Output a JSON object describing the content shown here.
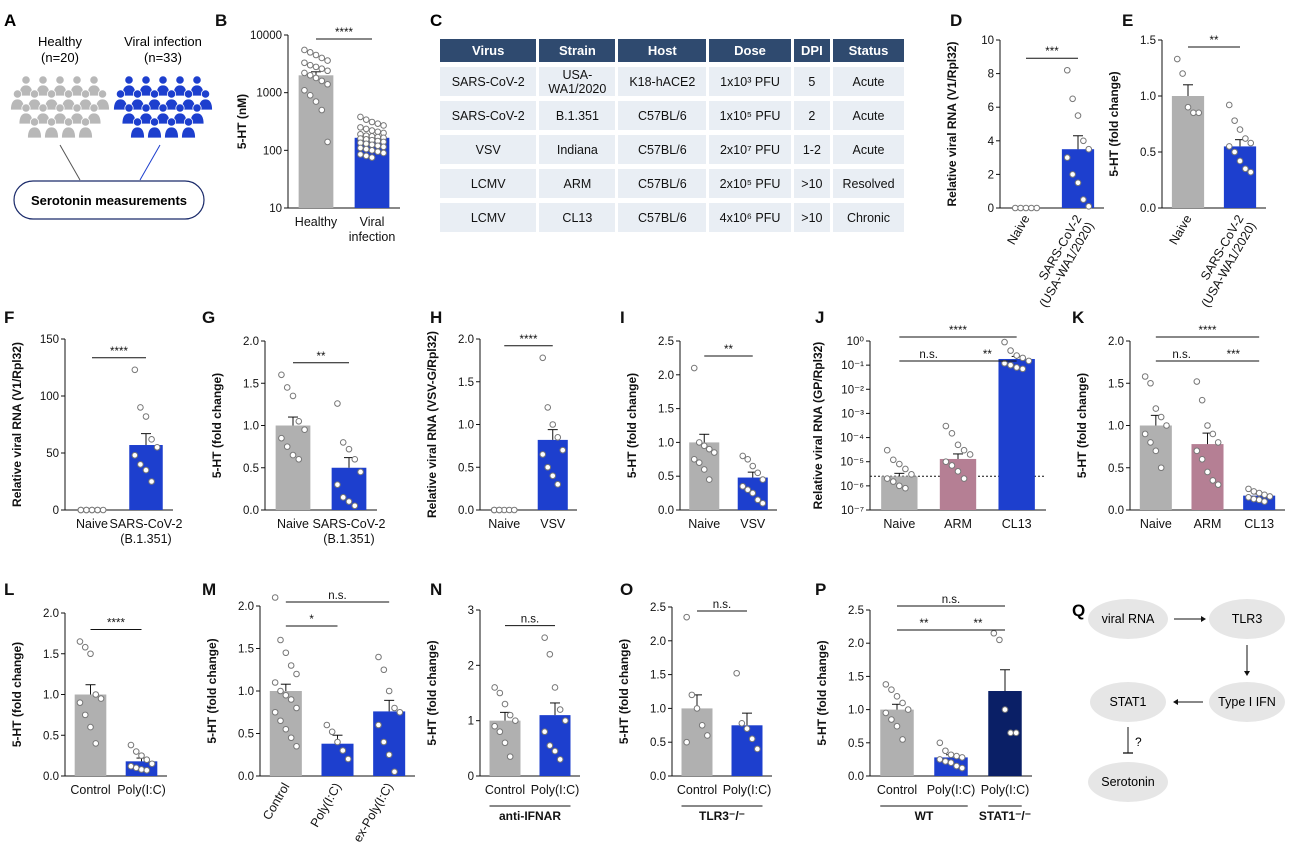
{
  "panels": {
    "A": {
      "letter": "A",
      "healthy_label": "Healthy",
      "healthy_n": "(n=20)",
      "viral_label": "Viral infection",
      "viral_n": "(n=33)",
      "box_label": "Serotonin measurements",
      "healthy_color": "#b8b8b8",
      "viral_color": "#1d3fce"
    },
    "C": {
      "letter": "C",
      "headers": [
        "Virus",
        "Strain",
        "Host",
        "Dose",
        "DPI",
        "Status"
      ],
      "rows": [
        [
          "SARS-CoV-2",
          "USA-WA1/2020",
          "K18-hACE2",
          "1x10³ PFU",
          "5",
          "Acute"
        ],
        [
          "SARS-CoV-2",
          "B.1.351",
          "C57BL/6",
          "1x10⁵ PFU",
          "2",
          "Acute"
        ],
        [
          "VSV",
          "Indiana",
          "C57BL/6",
          "2x10⁷ PFU",
          "1-2",
          "Acute"
        ],
        [
          "LCMV",
          "ARM",
          "C57BL/6",
          "2x10⁵ PFU",
          ">10",
          "Resolved"
        ],
        [
          "LCMV",
          "CL13",
          "C57BL/6",
          "4x10⁶ PFU",
          ">10",
          "Chronic"
        ]
      ]
    },
    "Q": {
      "letter": "Q",
      "nodes": [
        "viral RNA",
        "TLR3",
        "Type I IFN",
        "STAT1",
        "Serotonin"
      ],
      "question": "?"
    }
  },
  "colors": {
    "gray": "#b0b0b0",
    "blue": "#1d3fce",
    "navy": "#0a1f66",
    "mauve": "#b57f94"
  },
  "chart_data": [
    {
      "panel": "B",
      "type": "bar",
      "scale": "log",
      "ylabel": "5-HT (nM)",
      "ylim": [
        10,
        10000
      ],
      "yticks": [
        "10",
        "100",
        "1000",
        "10000"
      ],
      "yticks_v": [
        10,
        100,
        1000,
        10000
      ],
      "categories": [
        "Healthy",
        "Viral\ninfection"
      ],
      "values": [
        2000,
        165
      ],
      "errors": [
        300,
        15
      ],
      "colors": [
        "gray",
        "blue"
      ],
      "points": [
        [
          5500,
          5000,
          4500,
          4000,
          3600,
          3300,
          3000,
          2800,
          2600,
          2400,
          2200,
          2000,
          1800,
          1600,
          1400,
          1100,
          900,
          700,
          500,
          140
        ],
        [
          380,
          340,
          310,
          290,
          270,
          250,
          235,
          220,
          210,
          200,
          190,
          180,
          175,
          170,
          165,
          160,
          155,
          150,
          145,
          140,
          135,
          130,
          125,
          120,
          115,
          110,
          105,
          100,
          95,
          90,
          85,
          80,
          75
        ]
      ],
      "sig": [
        {
          "a": 0,
          "b": 1,
          "label": "****"
        }
      ]
    },
    {
      "panel": "D",
      "type": "bar",
      "ylabel": "Relative viral RNA (V1/Rpl32)",
      "ylim": [
        0,
        10
      ],
      "yticks": [
        "0",
        "2",
        "4",
        "6",
        "8",
        "10"
      ],
      "yticks_v": [
        0,
        2,
        4,
        6,
        8,
        10
      ],
      "rotate_x": true,
      "categories": [
        "Naive",
        "SARS-CoV-2\n(USA-WA1/2020)"
      ],
      "values": [
        0,
        3.5
      ],
      "errors": [
        0,
        0.8
      ],
      "colors": [
        "gray",
        "blue"
      ],
      "points": [
        [
          0,
          0,
          0,
          0,
          0
        ],
        [
          8.2,
          6.5,
          5.5,
          4.0,
          3.5,
          3.0,
          2.0,
          1.5,
          0.5,
          0.1
        ]
      ],
      "sig": [
        {
          "a": 0,
          "b": 1,
          "label": "***"
        }
      ]
    },
    {
      "panel": "E",
      "type": "bar",
      "ylabel": "5-HT (fold change)",
      "ylim": [
        0,
        1.5
      ],
      "yticks": [
        "0.0",
        "0.5",
        "1.0",
        "1.5"
      ],
      "yticks_v": [
        0,
        0.5,
        1,
        1.5
      ],
      "rotate_x": true,
      "categories": [
        "Naive",
        "SARS-CoV-2\n(USA-WA1/2020)"
      ],
      "values": [
        1.0,
        0.55
      ],
      "errors": [
        0.1,
        0.06
      ],
      "colors": [
        "gray",
        "blue"
      ],
      "points": [
        [
          1.33,
          1.2,
          0.9,
          0.85,
          0.85
        ],
        [
          0.92,
          0.78,
          0.7,
          0.62,
          0.58,
          0.55,
          0.5,
          0.42,
          0.35,
          0.32
        ]
      ],
      "sig": [
        {
          "a": 0,
          "b": 1,
          "label": "**"
        }
      ]
    },
    {
      "panel": "F",
      "type": "bar",
      "ylabel": "Relative viral RNA (V1/Rpl32)",
      "ylim": [
        0,
        150
      ],
      "yticks": [
        "0",
        "50",
        "100",
        "150"
      ],
      "yticks_v": [
        0,
        50,
        100,
        150
      ],
      "categories": [
        "Naive",
        "SARS-CoV-2\n(B.1.351)"
      ],
      "values": [
        0,
        57
      ],
      "errors": [
        0,
        10
      ],
      "colors": [
        "gray",
        "blue"
      ],
      "points": [
        [
          0,
          0,
          0,
          0,
          0,
          0,
          0,
          0,
          0
        ],
        [
          123,
          90,
          82,
          62,
          55,
          48,
          40,
          35,
          25
        ]
      ],
      "sig": [
        {
          "a": 0,
          "b": 1,
          "label": "****"
        }
      ]
    },
    {
      "panel": "G",
      "type": "bar",
      "ylabel": "5-HT (fold change)",
      "ylim": [
        0,
        2.0
      ],
      "yticks": [
        "0.0",
        "0.5",
        "1.0",
        "1.5",
        "2.0"
      ],
      "yticks_v": [
        0,
        0.5,
        1,
        1.5,
        2
      ],
      "categories": [
        "Naive",
        "SARS-CoV-2\n(B.1.351)"
      ],
      "values": [
        1.0,
        0.5
      ],
      "errors": [
        0.1,
        0.12
      ],
      "colors": [
        "gray",
        "blue"
      ],
      "points": [
        [
          1.6,
          1.45,
          1.35,
          1.05,
          0.95,
          0.85,
          0.75,
          0.65,
          0.6
        ],
        [
          1.26,
          0.8,
          0.72,
          0.6,
          0.45,
          0.3,
          0.15,
          0.1,
          0.05
        ]
      ],
      "sig": [
        {
          "a": 0,
          "b": 1,
          "label": "**"
        }
      ]
    },
    {
      "panel": "H",
      "type": "bar",
      "ylabel": "Relative viral RNA (VSV-G/Rpl32)",
      "ylim": [
        0,
        2.0
      ],
      "yticks": [
        "0.0",
        "0.5",
        "1.0",
        "1.5",
        "2.0"
      ],
      "yticks_v": [
        0,
        0.5,
        1,
        1.5,
        2
      ],
      "categories": [
        "Naive",
        "VSV"
      ],
      "values": [
        0,
        0.82
      ],
      "errors": [
        0,
        0.12
      ],
      "colors": [
        "gray",
        "blue"
      ],
      "points": [
        [
          0,
          0,
          0,
          0,
          0,
          0,
          0
        ],
        [
          1.78,
          1.2,
          1.0,
          0.85,
          0.7,
          0.65,
          0.5,
          0.4,
          0.3
        ]
      ],
      "sig": [
        {
          "a": 0,
          "b": 1,
          "label": "****"
        }
      ]
    },
    {
      "panel": "I",
      "type": "bar",
      "ylabel": "5-HT (fold change)",
      "ylim": [
        0,
        2.5
      ],
      "yticks": [
        "0.0",
        "0.5",
        "1.0",
        "1.5",
        "2.0",
        "2.5"
      ],
      "yticks_v": [
        0,
        0.5,
        1,
        1.5,
        2,
        2.5
      ],
      "categories": [
        "Naive",
        "VSV"
      ],
      "values": [
        1.0,
        0.48
      ],
      "errors": [
        0.12,
        0.08
      ],
      "colors": [
        "gray",
        "blue"
      ],
      "points": [
        [
          2.1,
          1.0,
          0.95,
          0.9,
          0.85,
          0.75,
          0.7,
          0.6,
          0.45
        ],
        [
          0.8,
          0.75,
          0.65,
          0.55,
          0.45,
          0.35,
          0.3,
          0.25,
          0.15,
          0.1
        ]
      ],
      "sig": [
        {
          "a": 0,
          "b": 1,
          "label": "**"
        }
      ]
    },
    {
      "panel": "J",
      "type": "bar",
      "scale": "log",
      "ylabel": "Relative viral RNA (GP/Rpl32)",
      "ylim": [
        1e-07,
        1
      ],
      "yticks": [
        "10⁻⁷",
        "10⁻⁶",
        "10⁻⁵",
        "10⁻⁴",
        "10⁻³",
        "10⁻²",
        "10⁻¹",
        "10⁰"
      ],
      "yticks_v": [
        1e-07,
        1e-06,
        1e-05,
        0.0001,
        0.001,
        0.01,
        0.1,
        1
      ],
      "categories": [
        "Naive",
        "ARM",
        "CL13"
      ],
      "values": [
        2.5e-06,
        1.3e-05,
        0.18
      ],
      "errors": [
        8e-07,
        8e-06,
        0.05
      ],
      "colors": [
        "gray",
        "mauve",
        "blue"
      ],
      "dotted_line": 2.5e-06,
      "points": [
        [
          3e-05,
          1.2e-05,
          8e-06,
          5e-06,
          3e-06,
          2e-06,
          1.5e-06,
          1e-06,
          8e-07
        ],
        [
          0.0003,
          0.00015,
          5e-05,
          3e-05,
          2e-05,
          1e-05,
          7e-06,
          4e-06,
          2e-06
        ],
        [
          0.9,
          0.4,
          0.25,
          0.2,
          0.15,
          0.12,
          0.1,
          0.08,
          0.07
        ]
      ],
      "sig": [
        {
          "a": 0,
          "b": 1,
          "label": "n.s."
        },
        {
          "a": 1,
          "b": 2,
          "label": "**"
        },
        {
          "a": 0,
          "b": 2,
          "label": "****"
        }
      ]
    },
    {
      "panel": "K",
      "type": "bar",
      "ylabel": "5-HT (fold change)",
      "ylim": [
        0,
        2.0
      ],
      "yticks": [
        "0.0",
        "0.5",
        "1.0",
        "1.5",
        "2.0"
      ],
      "yticks_v": [
        0,
        0.5,
        1,
        1.5,
        2
      ],
      "categories": [
        "Naive",
        "ARM",
        "CL13"
      ],
      "values": [
        1.0,
        0.78,
        0.17
      ],
      "errors": [
        0.12,
        0.13,
        0.02
      ],
      "colors": [
        "gray",
        "mauve",
        "blue"
      ],
      "points": [
        [
          1.58,
          1.5,
          1.2,
          1.1,
          1.0,
          0.9,
          0.8,
          0.7,
          0.5
        ],
        [
          1.52,
          1.3,
          1.0,
          0.9,
          0.8,
          0.7,
          0.6,
          0.45,
          0.35,
          0.3
        ],
        [
          0.25,
          0.22,
          0.2,
          0.18,
          0.16,
          0.15,
          0.13,
          0.12,
          0.1
        ]
      ],
      "sig": [
        {
          "a": 0,
          "b": 1,
          "label": "n.s."
        },
        {
          "a": 1,
          "b": 2,
          "label": "***"
        },
        {
          "a": 0,
          "b": 2,
          "label": "****"
        }
      ]
    },
    {
      "panel": "L",
      "type": "bar",
      "ylabel": "5-HT (fold change)",
      "ylim": [
        0,
        2.0
      ],
      "yticks": [
        "0.0",
        "0.5",
        "1.0",
        "1.5",
        "2.0"
      ],
      "yticks_v": [
        0,
        0.5,
        1,
        1.5,
        2
      ],
      "categories": [
        "Control",
        "Poly(I:C)"
      ],
      "values": [
        1.0,
        0.18
      ],
      "errors": [
        0.12,
        0.04
      ],
      "colors": [
        "gray",
        "blue"
      ],
      "points": [
        [
          1.65,
          1.58,
          1.5,
          1.0,
          0.95,
          0.9,
          0.75,
          0.6,
          0.4
        ],
        [
          0.38,
          0.3,
          0.25,
          0.2,
          0.15,
          0.12,
          0.1,
          0.08,
          0.07
        ]
      ],
      "sig": [
        {
          "a": 0,
          "b": 1,
          "label": "****"
        }
      ]
    },
    {
      "panel": "M",
      "type": "bar",
      "ylabel": "5-HT (fold change)",
      "ylim": [
        0,
        2.0
      ],
      "yticks": [
        "0.0",
        "0.5",
        "1.0",
        "1.5",
        "2.0"
      ],
      "yticks_v": [
        0,
        0.5,
        1,
        1.5,
        2
      ],
      "rotate_x": true,
      "categories": [
        "Control",
        "Poly(I:C)",
        "ex-Poly(I:C)"
      ],
      "values": [
        1.0,
        0.38,
        0.76
      ],
      "errors": [
        0.08,
        0.1,
        0.13
      ],
      "colors": [
        "gray",
        "blue",
        "blue"
      ],
      "points": [
        [
          2.1,
          1.6,
          1.45,
          1.3,
          1.2,
          1.1,
          1.0,
          0.95,
          0.9,
          0.8,
          0.75,
          0.65,
          0.55,
          0.45,
          0.35
        ],
        [
          0.6,
          0.52,
          0.4,
          0.3,
          0.2
        ],
        [
          1.4,
          1.25,
          1.0,
          0.8,
          0.75,
          0.6,
          0.4,
          0.25,
          0.05
        ]
      ],
      "sig": [
        {
          "a": 0,
          "b": 1,
          "label": "*"
        },
        {
          "a": 0,
          "b": 2,
          "label": "n.s."
        }
      ]
    },
    {
      "panel": "N",
      "type": "bar",
      "ylabel": "5-HT (fold change)",
      "ylim": [
        0,
        3
      ],
      "yticks": [
        "0",
        "1",
        "2",
        "3"
      ],
      "yticks_v": [
        0,
        1,
        2,
        3
      ],
      "categories": [
        "Control",
        "Poly(I:C)"
      ],
      "values": [
        1.0,
        1.1
      ],
      "errors": [
        0.15,
        0.22
      ],
      "colors": [
        "gray",
        "blue"
      ],
      "group_label": "anti-IFNAR",
      "points": [
        [
          1.6,
          1.5,
          1.3,
          1.1,
          1.0,
          0.9,
          0.8,
          0.6,
          0.35
        ],
        [
          2.5,
          2.2,
          1.6,
          1.2,
          1.0,
          0.8,
          0.55,
          0.45,
          0.3
        ]
      ],
      "sig": [
        {
          "a": 0,
          "b": 1,
          "label": "n.s."
        }
      ]
    },
    {
      "panel": "O",
      "type": "bar",
      "ylabel": "5-HT (fold change)",
      "ylim": [
        0,
        2.5
      ],
      "yticks": [
        "0.0",
        "0.5",
        "1.0",
        "1.5",
        "2.0",
        "2.5"
      ],
      "yticks_v": [
        0,
        0.5,
        1,
        1.5,
        2,
        2.5
      ],
      "categories": [
        "Control",
        "Poly(I:C)"
      ],
      "values": [
        1.0,
        0.75
      ],
      "errors": [
        0.2,
        0.18
      ],
      "colors": [
        "gray",
        "blue"
      ],
      "group_label": "TLR3⁻/⁻",
      "points": [
        [
          2.35,
          1.2,
          1.0,
          0.75,
          0.6,
          0.5
        ],
        [
          1.52,
          0.78,
          0.7,
          0.55,
          0.4
        ]
      ],
      "sig": [
        {
          "a": 0,
          "b": 1,
          "label": "n.s."
        }
      ]
    },
    {
      "panel": "P",
      "type": "bar",
      "ylabel": "5-HT (fold change)",
      "ylim": [
        0,
        2.5
      ],
      "yticks": [
        "0.0",
        "0.5",
        "1.0",
        "1.5",
        "2.0",
        "2.5"
      ],
      "yticks_v": [
        0,
        0.5,
        1,
        1.5,
        2,
        2.5
      ],
      "categories": [
        "Control",
        "Poly(I:C)",
        "Poly(I:C)"
      ],
      "values": [
        1.0,
        0.28,
        1.28
      ],
      "errors": [
        0.08,
        0.04,
        0.32
      ],
      "colors": [
        "gray",
        "blue",
        "navy"
      ],
      "group_labels": [
        {
          "label": "WT",
          "from": 0,
          "to": 1
        },
        {
          "label": "STAT1⁻/⁻",
          "from": 2,
          "to": 2
        }
      ],
      "points": [
        [
          1.38,
          1.3,
          1.2,
          1.1,
          1.0,
          0.95,
          0.85,
          0.75,
          0.55
        ],
        [
          0.5,
          0.38,
          0.32,
          0.3,
          0.28,
          0.25,
          0.22,
          0.2,
          0.15,
          0.12
        ],
        [
          2.15,
          2.05,
          1.0,
          0.65,
          0.65
        ]
      ],
      "sig": [
        {
          "a": 0,
          "b": 1,
          "label": "**"
        },
        {
          "a": 1,
          "b": 2,
          "label": "**"
        },
        {
          "a": 0,
          "b": 2,
          "label": "n.s."
        }
      ]
    }
  ]
}
